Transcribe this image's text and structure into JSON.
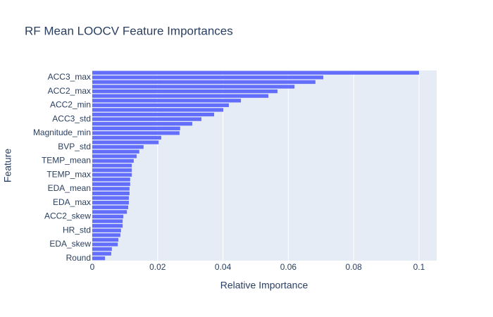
{
  "chart_data": {
    "type": "barh",
    "title": "RF Mean LOOCV Feature Importances",
    "xlabel": "Relative Importance",
    "ylabel": "Feature",
    "categories": [
      "Round",
      null,
      null,
      "EDA_skew",
      null,
      null,
      "HR_std",
      null,
      null,
      "ACC2_skew",
      null,
      null,
      "EDA_max",
      null,
      null,
      "EDA_mean",
      null,
      null,
      "TEMP_max",
      null,
      null,
      "TEMP_mean",
      null,
      null,
      "BVP_std",
      null,
      null,
      "Magnitude_min",
      null,
      null,
      "ACC3_std",
      null,
      null,
      "ACC2_min",
      null,
      null,
      "ACC2_max",
      null,
      null,
      "ACC3_max",
      null
    ],
    "values": [
      0.0039,
      0.0058,
      0.006,
      0.0078,
      0.008,
      0.0086,
      0.0088,
      0.0093,
      0.0093,
      0.0095,
      0.0106,
      0.011,
      0.0112,
      0.0112,
      0.0114,
      0.0114,
      0.0116,
      0.0116,
      0.0121,
      0.0121,
      0.0121,
      0.0127,
      0.0136,
      0.0144,
      0.0157,
      0.0203,
      0.0211,
      0.0267,
      0.0269,
      0.0306,
      0.0334,
      0.0373,
      0.0401,
      0.0418,
      0.0455,
      0.0539,
      0.0567,
      0.0619,
      0.0683,
      0.0707,
      0.1
    ],
    "color": "#636efa",
    "xlim": [
      0,
      0.1054
    ],
    "xticks": [
      0,
      0.02,
      0.04,
      0.06,
      0.08,
      0.1
    ],
    "grid": true
  }
}
